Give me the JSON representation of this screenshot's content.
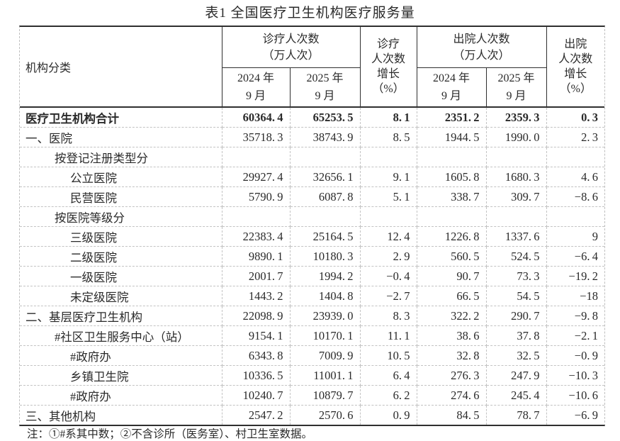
{
  "title": "表1  全国医疗卫生机构医疗服务量",
  "table": {
    "headers": {
      "institution": "机构分类",
      "outpatient_group": [
        "诊疗人次数",
        "（万人次）"
      ],
      "outpatient_growth": [
        "诊疗",
        "人次数",
        "增长",
        "（%）"
      ],
      "discharge_group": [
        "出院人次数",
        "（万人次）"
      ],
      "discharge_growth": [
        "出院",
        "人次数",
        "增长",
        "（%）"
      ],
      "sub_2024": [
        "2024 年",
        "9 月"
      ],
      "sub_2025": [
        "2025 年",
        "9 月"
      ]
    },
    "rows": [
      {
        "label": "医疗卫生机构合计",
        "indent": 0,
        "bold": true,
        "values": [
          "60364.4",
          "65253.5",
          "8.1",
          "2351.2",
          "2359.3",
          "0.3"
        ]
      },
      {
        "label": "一、医院",
        "indent": 0,
        "bold": false,
        "values": [
          "35718.3",
          "38743.9",
          "8.5",
          "1944.5",
          "1990.0",
          "2.3"
        ]
      },
      {
        "label": "按登记注册类型分",
        "indent": 1,
        "bold": false,
        "values": [
          "",
          "",
          "",
          "",
          "",
          ""
        ]
      },
      {
        "label": "公立医院",
        "indent": 2,
        "bold": false,
        "values": [
          "29927.4",
          "32656.1",
          "9.1",
          "1605.8",
          "1680.3",
          "4.6"
        ]
      },
      {
        "label": "民营医院",
        "indent": 2,
        "bold": false,
        "values": [
          "5790.9",
          "6087.8",
          "5.1",
          "338.7",
          "309.7",
          "-8.6"
        ]
      },
      {
        "label": "按医院等级分",
        "indent": 1,
        "bold": false,
        "values": [
          "",
          "",
          "",
          "",
          "",
          ""
        ]
      },
      {
        "label": "三级医院",
        "indent": 2,
        "bold": false,
        "values": [
          "22383.4",
          "25164.5",
          "12.4",
          "1226.8",
          "1337.6",
          "9"
        ]
      },
      {
        "label": "二级医院",
        "indent": 2,
        "bold": false,
        "values": [
          "9890.1",
          "10180.3",
          "2.9",
          "560.5",
          "524.5",
          "-6.4"
        ]
      },
      {
        "label": "一级医院",
        "indent": 2,
        "bold": false,
        "values": [
          "2001.7",
          "1994.2",
          "-0.4",
          "90.7",
          "73.3",
          "-19.2"
        ]
      },
      {
        "label": "未定级医院",
        "indent": 2,
        "bold": false,
        "values": [
          "1443.2",
          "1404.8",
          "-2.7",
          "66.5",
          "54.5",
          "-18"
        ]
      },
      {
        "label": "二、基层医疗卫生机构",
        "indent": 0,
        "bold": false,
        "values": [
          "22098.9",
          "23939.0",
          "8.3",
          "322.2",
          "290.7",
          "-9.8"
        ]
      },
      {
        "label": "#社区卫生服务中心（站）",
        "indent": 1,
        "bold": false,
        "values": [
          "9154.1",
          "10170.1",
          "11.1",
          "38.6",
          "37.8",
          "-2.1"
        ]
      },
      {
        "label": "#政府办",
        "indent": 2,
        "bold": false,
        "values": [
          "6343.8",
          "7009.9",
          "10.5",
          "32.8",
          "32.5",
          "-0.9"
        ]
      },
      {
        "label": "乡镇卫生院",
        "indent": 2,
        "bold": false,
        "values": [
          "10336.5",
          "11001.1",
          "6.4",
          "276.3",
          "247.9",
          "-10.3"
        ]
      },
      {
        "label": "#政府办",
        "indent": 2,
        "bold": false,
        "values": [
          "10240.7",
          "10879.7",
          "6.2",
          "274.6",
          "245.4",
          "-10.6"
        ]
      },
      {
        "label": "三、其他机构",
        "indent": 0,
        "bold": false,
        "values": [
          "2547.2",
          "2570.6",
          "0.9",
          "84.5",
          "78.7",
          "-6.9"
        ]
      }
    ]
  },
  "note": "注：①#系其中数；②不含诊所（医务室）、村卫生室数据。"
}
